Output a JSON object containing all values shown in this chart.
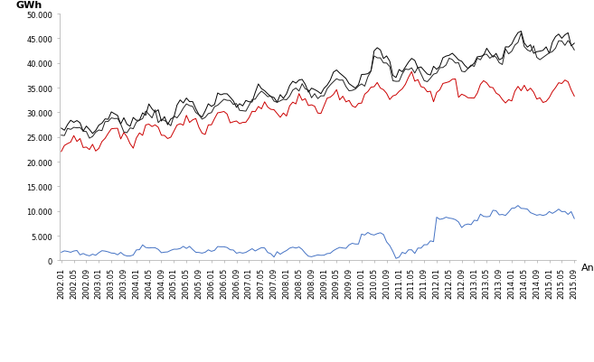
{
  "title": "",
  "ylabel": "GWh",
  "xlabel": "Ano",
  "ylim": [
    0,
    50000
  ],
  "yticks": [
    0,
    5000,
    10000,
    15000,
    20000,
    25000,
    30000,
    35000,
    40000,
    45000,
    50000
  ],
  "ytick_labels": [
    "0",
    "5.000",
    "10.000",
    "15.000",
    "20.000",
    "25.000",
    "30.000",
    "35.000",
    "40.000",
    "45.000",
    "50.000"
  ],
  "line_black1_color": "#000000",
  "line_black2_color": "#222222",
  "line_red_color": "#cc0000",
  "line_blue_color": "#4472c4",
  "background_color": "#ffffff",
  "tick_label_fontsize": 6.0,
  "axis_label_fontsize": 8,
  "linewidth_main": 0.7,
  "linewidth_blue": 0.7
}
